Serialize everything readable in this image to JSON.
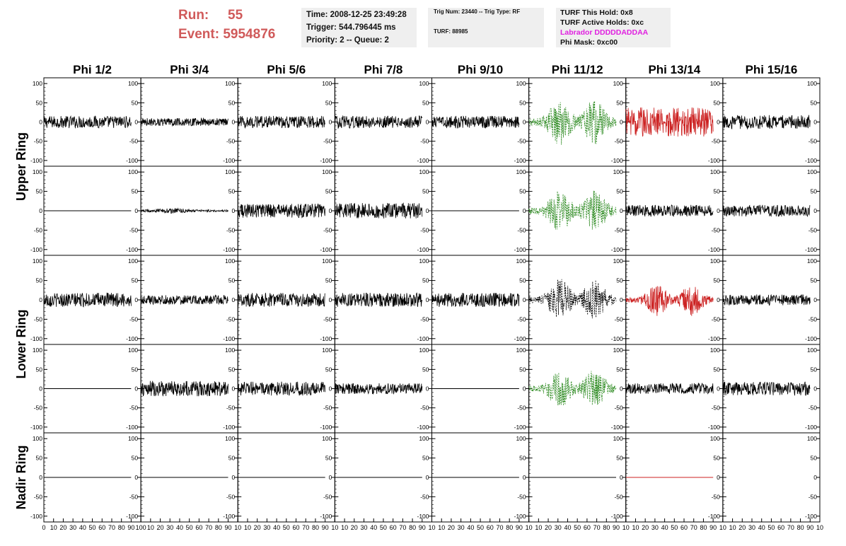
{
  "header": {
    "run_label": "Run:",
    "run_value": "55",
    "event_label": "Event:",
    "event_value": "5954876",
    "time": "Time: 2008-12-25 23:49:28",
    "trigger": "Trigger: 544.796445 ms",
    "priority": "Priority: 2 -- Queue: 2",
    "trig_num": "Trig Num: 23440 -- Trig Type: RF",
    "turf": "TURF: 88985",
    "turf_this_hold": "TURF This Hold: 0x8",
    "turf_active_holds": "TURF Active Holds: 0xc",
    "labrador": "Labrador DDDDDADDAA",
    "phi_mask": "Phi Mask: 0xc00"
  },
  "colors": {
    "run_text": "#d05a5a",
    "labrador_text": "#e020e0",
    "trace_default": "#000000",
    "trace_triggered": "#2e8b22",
    "trace_masked": "#cc2222"
  },
  "chart_data": {
    "type": "line",
    "columns": [
      "Phi 1/2",
      "Phi 3/4",
      "Phi 5/6",
      "Phi 7/8",
      "Phi 9/10",
      "Phi 11/12",
      "Phi 13/14",
      "Phi 15/16"
    ],
    "rows": [
      "Upper Ring",
      "Lower Ring",
      "Nadir Ring"
    ],
    "xlim": [
      0,
      100
    ],
    "ylim": [
      -115,
      115
    ],
    "x_ticks": [
      "0",
      "10",
      "20",
      "30",
      "40",
      "50",
      "60",
      "70",
      "80",
      "90",
      "100"
    ],
    "y_ticks": [
      "100",
      "50",
      "0",
      "-50",
      "-100"
    ],
    "panel_rows": [
      {
        "ring": "Upper Ring",
        "traces": [
          {
            "amp": 16,
            "color": "black"
          },
          {
            "amp": 10,
            "color": "black"
          },
          {
            "amp": 16,
            "color": "black"
          },
          {
            "amp": 16,
            "color": "black"
          },
          {
            "amp": 16,
            "color": "black"
          },
          {
            "amp": 60,
            "color": "green"
          },
          {
            "amp": 38,
            "color": "red"
          },
          {
            "amp": 18,
            "color": "black"
          }
        ]
      },
      {
        "ring": "Upper Ring",
        "traces": [
          {
            "amp": 0,
            "color": "black"
          },
          {
            "amp": 7,
            "color": "black"
          },
          {
            "amp": 18,
            "color": "black"
          },
          {
            "amp": 20,
            "color": "black"
          },
          {
            "amp": 0,
            "color": "black"
          },
          {
            "amp": 55,
            "color": "green"
          },
          {
            "amp": 15,
            "color": "black"
          },
          {
            "amp": 15,
            "color": "black"
          }
        ]
      },
      {
        "ring": "Lower Ring",
        "traces": [
          {
            "amp": 18,
            "color": "black"
          },
          {
            "amp": 12,
            "color": "black"
          },
          {
            "amp": 18,
            "color": "black"
          },
          {
            "amp": 18,
            "color": "black"
          },
          {
            "amp": 18,
            "color": "black"
          },
          {
            "amp": 55,
            "color": "black"
          },
          {
            "amp": 42,
            "color": "red"
          },
          {
            "amp": 14,
            "color": "black"
          }
        ]
      },
      {
        "ring": "Lower Ring",
        "traces": [
          {
            "amp": 0,
            "color": "black"
          },
          {
            "amp": 20,
            "color": "black"
          },
          {
            "amp": 18,
            "color": "black"
          },
          {
            "amp": 14,
            "color": "black"
          },
          {
            "amp": 0,
            "color": "black"
          },
          {
            "amp": 50,
            "color": "green"
          },
          {
            "amp": 14,
            "color": "black"
          },
          {
            "amp": 18,
            "color": "black"
          }
        ]
      },
      {
        "ring": "Nadir Ring",
        "traces": [
          {
            "amp": 0,
            "color": "black"
          },
          {
            "amp": 0,
            "color": "black"
          },
          {
            "amp": 0,
            "color": "black"
          },
          {
            "amp": 0,
            "color": "black"
          },
          {
            "amp": 0,
            "color": "black"
          },
          {
            "amp": 0,
            "color": "black"
          },
          {
            "amp": 0,
            "color": "red"
          },
          {
            "amp": 0,
            "color": "none"
          }
        ]
      }
    ]
  }
}
